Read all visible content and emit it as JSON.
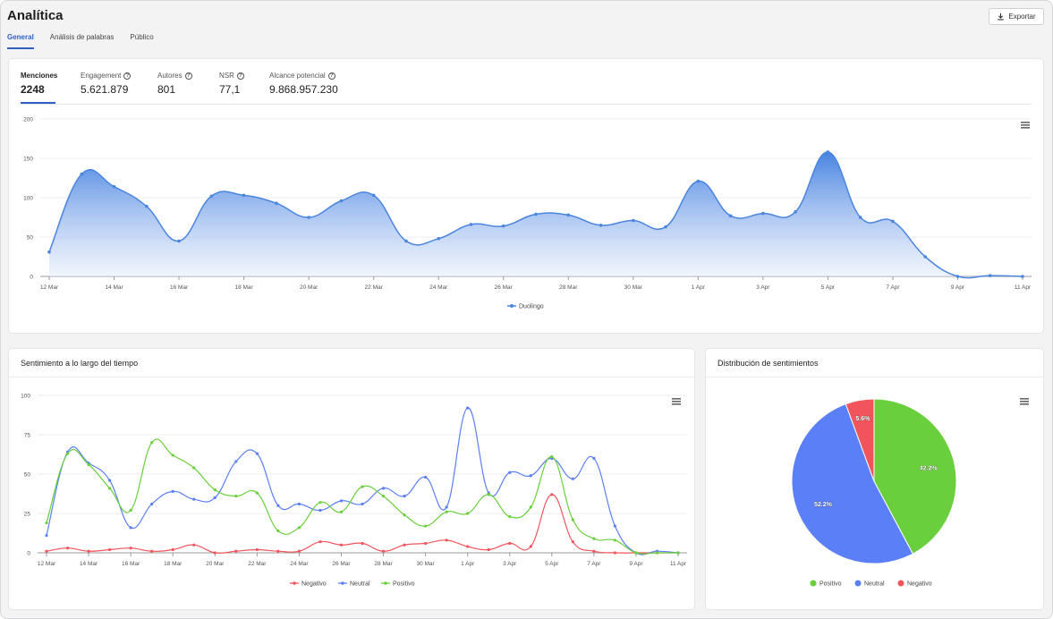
{
  "header": {
    "title": "Analítica",
    "export_label": "Exportar",
    "tabs": [
      {
        "label": "General",
        "active": true
      },
      {
        "label": "Análisis de palabras",
        "active": false
      },
      {
        "label": "Público",
        "active": false
      }
    ]
  },
  "metrics": [
    {
      "label": "Menciones",
      "value": "2248",
      "active": true,
      "help": false
    },
    {
      "label": "Engagement",
      "value": "5.621.879",
      "active": false,
      "help": true
    },
    {
      "label": "Autores",
      "value": "801",
      "active": false,
      "help": true
    },
    {
      "label": "NSR",
      "value": "77,1",
      "active": false,
      "help": true
    },
    {
      "label": "Alcance potencial",
      "value": "9.868.957.230",
      "active": false,
      "help": true
    }
  ],
  "colors": {
    "accent": "#2f5fc4",
    "duolingo": "#4a85de",
    "negativo": "#f2545b",
    "neutral": "#5b7ff7",
    "positivo": "#6acf3d"
  },
  "mentions_chart": {
    "chart_data": {
      "type": "area",
      "x": [
        "12 Mar",
        "13 Mar",
        "14 Mar",
        "15 Mar",
        "16 Mar",
        "17 Mar",
        "18 Mar",
        "19 Mar",
        "20 Mar",
        "21 Mar",
        "22 Mar",
        "23 Mar",
        "24 Mar",
        "25 Mar",
        "26 Mar",
        "27 Mar",
        "28 Mar",
        "29 Mar",
        "30 Mar",
        "31 Mar",
        "1 Apr",
        "2 Apr",
        "3 Apr",
        "4 Apr",
        "5 Apr",
        "6 Apr",
        "7 Apr",
        "8 Apr",
        "9 Apr",
        "10 Apr",
        "11 Apr"
      ],
      "x_tick_labels": [
        "12 Mar",
        "14 Mar",
        "16 Mar",
        "18 Mar",
        "20 Mar",
        "22 Mar",
        "24 Mar",
        "26 Mar",
        "28 Mar",
        "30 Mar",
        "1 Apr",
        "3 Apr",
        "5 Apr",
        "7 Apr",
        "9 Apr",
        "11 Apr"
      ],
      "y_ticks": [
        "0",
        "50",
        "100",
        "150",
        "200"
      ],
      "ylim": [
        0,
        200
      ],
      "grid": true,
      "legend_position": "bottom-center",
      "series": [
        {
          "name": "Duolingo",
          "values": [
            31,
            130,
            114,
            89,
            45,
            102,
            103,
            93,
            75,
            96,
            103,
            45,
            48,
            66,
            64,
            79,
            78,
            65,
            71,
            63,
            121,
            77,
            80,
            82,
            158,
            75,
            70,
            25,
            0,
            1,
            0
          ]
        }
      ]
    }
  },
  "sentiment_chart": {
    "title": "Sentimiento a lo largo del tiempo",
    "chart_data": {
      "type": "line",
      "x": [
        "12 Mar",
        "13 Mar",
        "14 Mar",
        "15 Mar",
        "16 Mar",
        "17 Mar",
        "18 Mar",
        "19 Mar",
        "20 Mar",
        "21 Mar",
        "22 Mar",
        "23 Mar",
        "24 Mar",
        "25 Mar",
        "26 Mar",
        "27 Mar",
        "28 Mar",
        "29 Mar",
        "30 Mar",
        "31 Mar",
        "1 Apr",
        "2 Apr",
        "3 Apr",
        "4 Apr",
        "5 Apr",
        "6 Apr",
        "7 Apr",
        "8 Apr",
        "9 Apr",
        "10 Apr",
        "11 Apr"
      ],
      "x_tick_labels": [
        "12 Mar",
        "14 Mar",
        "16 Mar",
        "18 Mar",
        "20 Mar",
        "22 Mar",
        "24 Mar",
        "26 Mar",
        "28 Mar",
        "30 Mar",
        "1 Apr",
        "3 Apr",
        "5 Apr",
        "7 Apr",
        "9 Apr",
        "11 Apr"
      ],
      "y_ticks": [
        "0",
        "25",
        "50",
        "75",
        "100"
      ],
      "ylim": [
        0,
        100
      ],
      "grid": true,
      "legend_position": "bottom-center",
      "series": [
        {
          "name": "Negativo",
          "values": [
            1,
            3,
            1,
            2,
            3,
            1,
            2,
            5,
            0,
            1,
            2,
            1,
            1,
            7,
            5,
            6,
            1,
            5,
            6,
            8,
            4,
            2,
            6,
            4,
            37,
            7,
            1,
            0,
            0,
            0,
            0
          ]
        },
        {
          "name": "Neutral",
          "values": [
            11,
            64,
            57,
            46,
            16,
            31,
            39,
            34,
            35,
            58,
            63,
            30,
            31,
            27,
            33,
            31,
            41,
            36,
            48,
            29,
            92,
            38,
            51,
            49,
            60,
            47,
            60,
            17,
            0,
            1,
            0
          ]
        },
        {
          "name": "Positivo",
          "values": [
            19,
            63,
            56,
            41,
            27,
            70,
            62,
            54,
            40,
            36,
            38,
            14,
            16,
            32,
            26,
            42,
            36,
            24,
            17,
            26,
            25,
            37,
            23,
            29,
            61,
            21,
            9,
            8,
            0,
            0,
            0
          ]
        }
      ]
    }
  },
  "distribution_chart": {
    "title": "Distribución de sentimientos",
    "chart_data": {
      "type": "pie",
      "legend_position": "bottom-center",
      "slices": [
        {
          "name": "Positivo",
          "value": 42.2,
          "label": "42.2%"
        },
        {
          "name": "Neutral",
          "value": 52.2,
          "label": "52.2%"
        },
        {
          "name": "Negativo",
          "value": 5.6,
          "label": "5.6%"
        }
      ]
    }
  },
  "icons": {
    "export": "download-icon",
    "menu": "hamburger-menu-icon",
    "help": "help-circle-icon"
  }
}
